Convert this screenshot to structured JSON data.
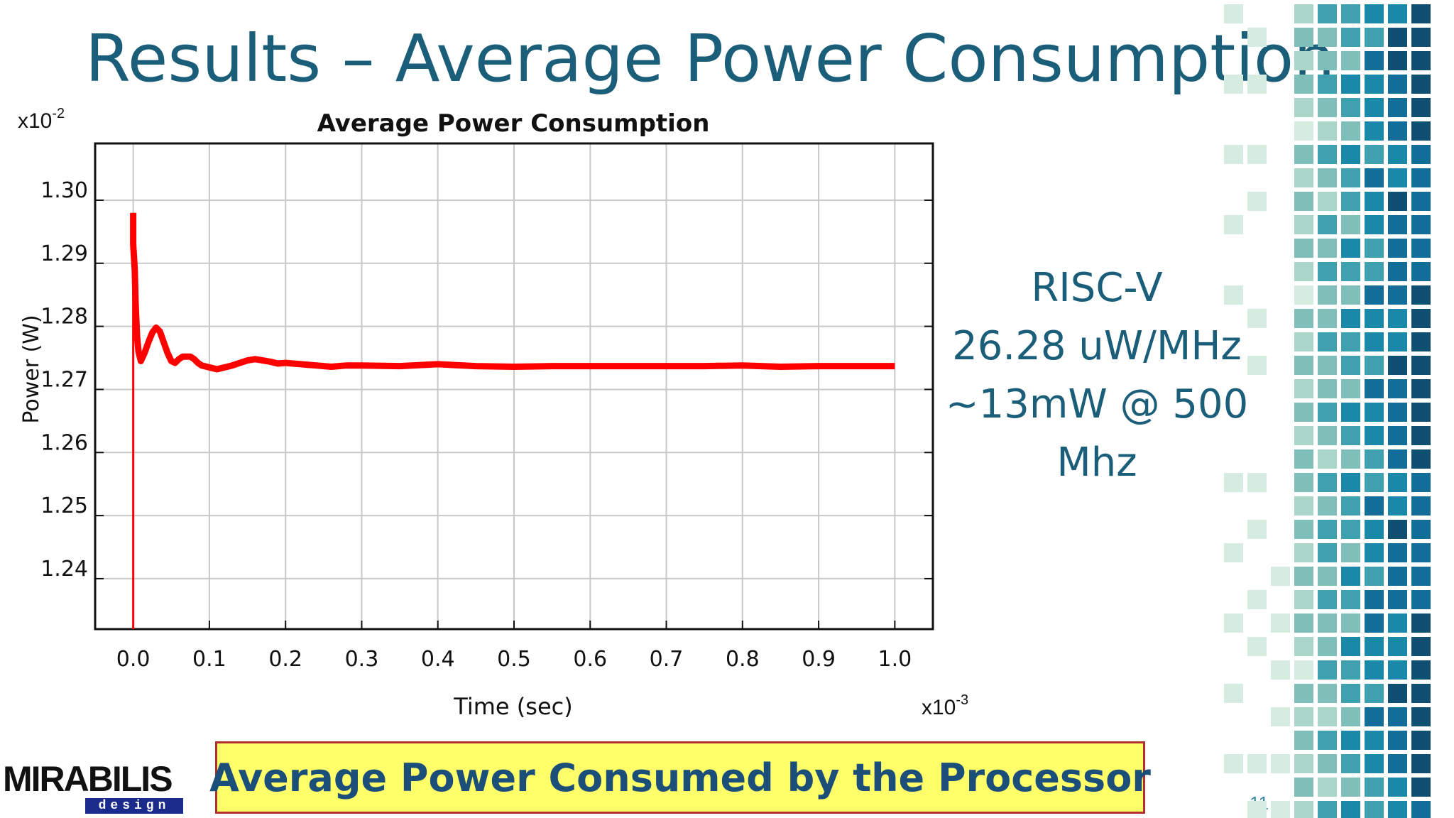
{
  "slide": {
    "title": "Results – Average Power Consumption",
    "side_lines": [
      "RISC-V",
      "26.28 uW/MHz",
      "~13mW @ 500",
      "Mhz"
    ],
    "caption": "Average Power Consumed by the Processor",
    "page_number": "11",
    "logo_text": "MIRABILIS",
    "logo_subtext": "design",
    "colors": {
      "title": "#1b5e7a",
      "caption_bg": "#ffff6a",
      "caption_border": "#b03030",
      "series": "#ff0000"
    }
  },
  "chart_data": {
    "type": "line",
    "title": "Average Power Consumption",
    "xlabel": "Time (sec)",
    "ylabel": "Power (W)",
    "x_multiplier_label": "x10",
    "x_multiplier_exp": "-3",
    "y_multiplier_label": "x10",
    "y_multiplier_exp": "-2",
    "xlim": [
      -0.05,
      1.05
    ],
    "ylim": [
      1.232,
      1.309
    ],
    "x_ticks": [
      0.0,
      0.1,
      0.2,
      0.3,
      0.4,
      0.5,
      0.6,
      0.7,
      0.8,
      0.9,
      1.0
    ],
    "x_tick_labels": [
      "0.0",
      "0.1",
      "0.2",
      "0.3",
      "0.4",
      "0.5",
      "0.6",
      "0.7",
      "0.8",
      "0.9",
      "1.0"
    ],
    "y_ticks": [
      1.24,
      1.25,
      1.26,
      1.27,
      1.28,
      1.29,
      1.3
    ],
    "y_tick_labels": [
      "1.24",
      "1.25",
      "1.26",
      "1.27",
      "1.28",
      "1.29",
      "1.30"
    ],
    "grid": true,
    "spike": {
      "x": 0.0,
      "y_from": 1.232,
      "y_to": 1.298
    },
    "series": [
      {
        "x": [
          0.0,
          0.0,
          0.002,
          0.003,
          0.005,
          0.007,
          0.01,
          0.015,
          0.02,
          0.025,
          0.03,
          0.035,
          0.04,
          0.045,
          0.05,
          0.055,
          0.06,
          0.065,
          0.07,
          0.075,
          0.08,
          0.085,
          0.09,
          0.1,
          0.11,
          0.12,
          0.13,
          0.14,
          0.15,
          0.16,
          0.17,
          0.18,
          0.19,
          0.2,
          0.22,
          0.24,
          0.26,
          0.28,
          0.3,
          0.35,
          0.4,
          0.45,
          0.5,
          0.55,
          0.6,
          0.65,
          0.7,
          0.75,
          0.8,
          0.85,
          0.9,
          0.95,
          1.0
        ],
        "y": [
          1.298,
          1.293,
          1.289,
          1.284,
          1.2785,
          1.276,
          1.2745,
          1.2758,
          1.2775,
          1.279,
          1.2798,
          1.2792,
          1.2775,
          1.2758,
          1.2745,
          1.2742,
          1.2748,
          1.2752,
          1.2752,
          1.2752,
          1.2748,
          1.2742,
          1.2738,
          1.2735,
          1.2732,
          1.2735,
          1.2738,
          1.2742,
          1.2746,
          1.2748,
          1.2746,
          1.2744,
          1.2741,
          1.2742,
          1.274,
          1.2738,
          1.2736,
          1.2738,
          1.2738,
          1.2737,
          1.274,
          1.2737,
          1.2736,
          1.2737,
          1.2737,
          1.2737,
          1.2737,
          1.2737,
          1.2738,
          1.2736,
          1.2737,
          1.2737,
          1.2737
        ]
      }
    ]
  }
}
